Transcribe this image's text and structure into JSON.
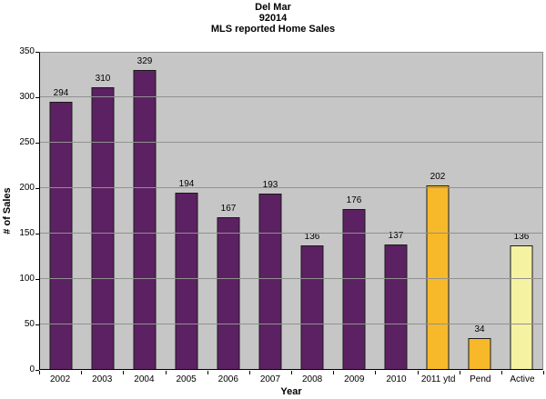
{
  "chart_data": {
    "type": "bar",
    "title_lines": [
      "Del Mar",
      "92014",
      "MLS reported Home Sales"
    ],
    "xlabel": "Year",
    "ylabel": "# of Sales",
    "categories": [
      "2002",
      "2003",
      "2004",
      "2005",
      "2006",
      "2007",
      "2008",
      "2009",
      "2010",
      "2011 ytd",
      "Pend",
      "Active"
    ],
    "values": [
      294,
      310,
      329,
      194,
      167,
      193,
      136,
      176,
      137,
      202,
      34,
      136
    ],
    "bar_color_keys": [
      "purple",
      "purple",
      "purple",
      "purple",
      "purple",
      "purple",
      "purple",
      "purple",
      "purple",
      "gold",
      "gold",
      "pale_yellow"
    ],
    "colors": {
      "purple": "#5C2162",
      "gold": "#F7B929",
      "pale_yellow": "#F5F2A2",
      "plot_background": "#C6C6C6",
      "gridline": "#919191",
      "bar_border": "#1A1A1A"
    },
    "ylim": [
      0,
      350
    ],
    "ytick_step": 50,
    "grid": true,
    "legend_position": "none"
  }
}
